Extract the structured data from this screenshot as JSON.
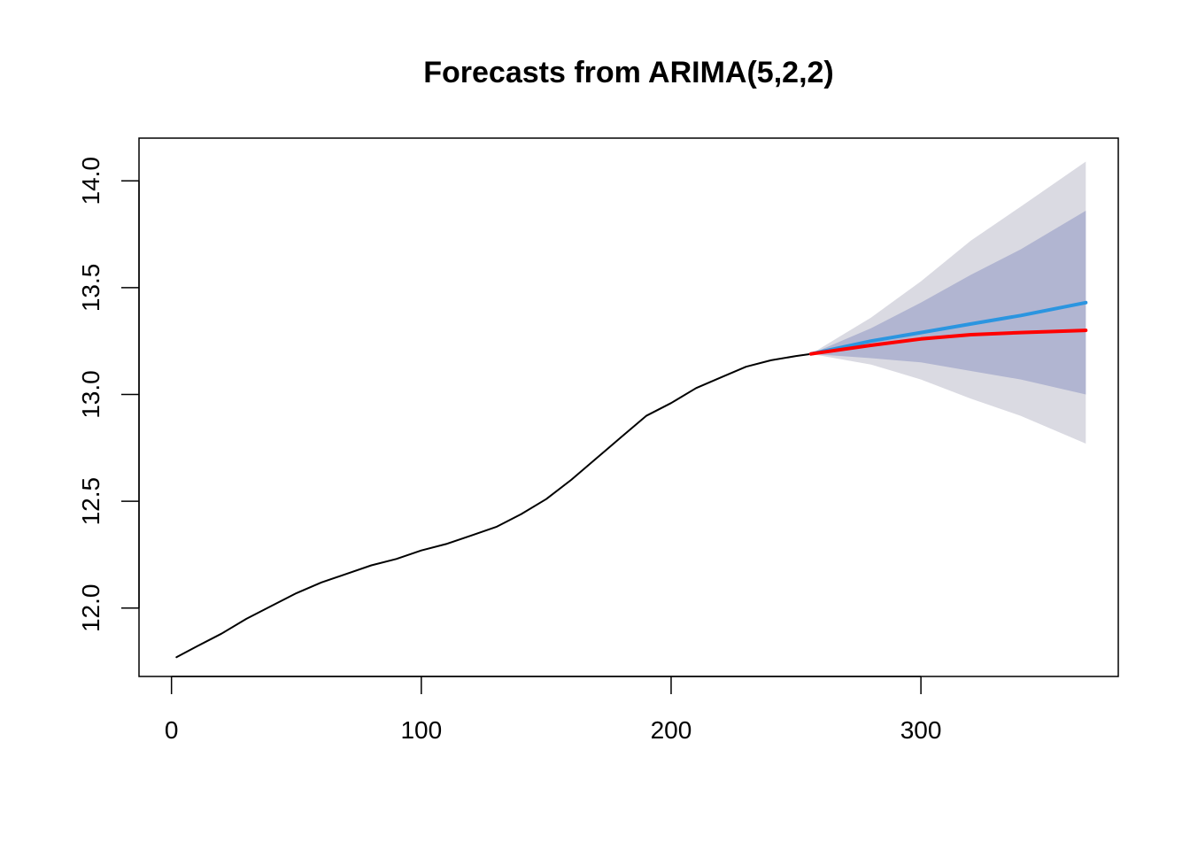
{
  "chart_data": {
    "type": "line",
    "title": "Forecasts from ARIMA(5,2,2)",
    "xlabel": "",
    "ylabel": "",
    "xlim": [
      -13,
      379
    ],
    "ylim": [
      11.68,
      14.2
    ],
    "x_ticks": [
      0,
      100,
      200,
      300
    ],
    "y_ticks": [
      12.0,
      12.5,
      13.0,
      13.5,
      14.0
    ],
    "grid": false,
    "legend": "none",
    "observed": {
      "color": "#000000",
      "x": [
        2,
        10,
        20,
        30,
        40,
        50,
        60,
        70,
        80,
        90,
        100,
        110,
        120,
        130,
        140,
        150,
        160,
        170,
        180,
        190,
        200,
        210,
        220,
        230,
        240,
        250,
        256
      ],
      "y": [
        11.77,
        11.82,
        11.88,
        11.95,
        12.01,
        12.07,
        12.12,
        12.16,
        12.2,
        12.23,
        12.27,
        12.3,
        12.34,
        12.38,
        12.44,
        12.51,
        12.6,
        12.7,
        12.8,
        12.9,
        12.96,
        13.03,
        13.08,
        13.13,
        13.16,
        13.18,
        13.19
      ]
    },
    "forecast_mean": {
      "color": "#2b95e0",
      "x": [
        256,
        280,
        300,
        320,
        340,
        366
      ],
      "y": [
        13.19,
        13.25,
        13.29,
        13.33,
        13.37,
        13.43
      ]
    },
    "alternative_forecast": {
      "color": "#ff0000",
      "x": [
        256,
        280,
        300,
        320,
        340,
        366
      ],
      "y": [
        13.19,
        13.23,
        13.26,
        13.28,
        13.29,
        13.3
      ]
    },
    "interval_80": {
      "color": "#b1b5d1",
      "x": [
        256,
        280,
        300,
        320,
        340,
        366
      ],
      "upper": [
        13.19,
        13.31,
        13.43,
        13.56,
        13.68,
        13.86
      ],
      "lower": [
        13.19,
        13.17,
        13.15,
        13.11,
        13.07,
        13.0
      ]
    },
    "interval_95": {
      "color": "#dadae2",
      "x": [
        256,
        280,
        300,
        320,
        340,
        366
      ],
      "upper": [
        13.19,
        13.36,
        13.53,
        13.72,
        13.88,
        14.09
      ],
      "lower": [
        13.19,
        13.14,
        13.07,
        12.98,
        12.9,
        12.77
      ]
    }
  }
}
